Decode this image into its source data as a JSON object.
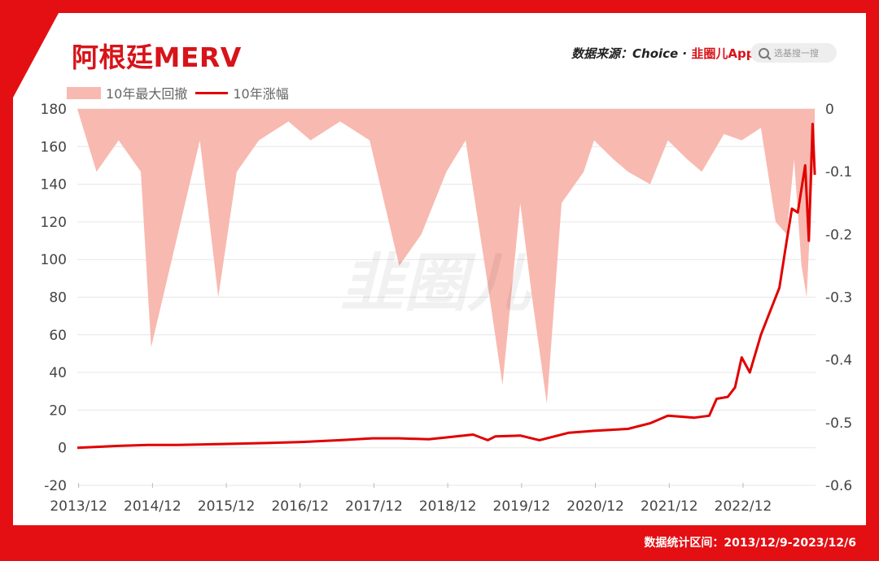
{
  "header": {
    "title": "阿根廷MERV",
    "source_prefix": "数据来源：Choice · ",
    "source_brand": "韭圈儿App",
    "search_placeholder": "选基搜一搜"
  },
  "footer": {
    "range_text": "数据统计区间：2013/12/9-2023/12/6"
  },
  "watermark": "韭圈儿",
  "colors": {
    "frame": "#e30f13",
    "line": "#e00000",
    "area": "#f8b9b0"
  },
  "chart_data": {
    "type": "line",
    "title": "",
    "legend": [
      "10年最大回撤",
      "10年涨幅"
    ],
    "legend_position": "top-left",
    "x_ticks": [
      "2013/12",
      "2014/12",
      "2015/12",
      "2016/12",
      "2017/12",
      "2018/12",
      "2019/12",
      "2020/12",
      "2021/12",
      "2022/12"
    ],
    "y_left": {
      "ticks": [
        "180",
        "160",
        "140",
        "120",
        "100",
        "80",
        "60",
        "40",
        "20",
        "0",
        "-20"
      ],
      "lim": [
        -20,
        180
      ]
    },
    "y_right": {
      "ticks": [
        "0",
        "-0.1",
        "-0.2",
        "-0.3",
        "-0.4",
        "-0.5",
        "-0.6"
      ],
      "lim": [
        -0.6,
        0
      ]
    },
    "grid": "horizontal",
    "series": [
      {
        "name": "10年涨幅",
        "type": "line",
        "axis": "left",
        "x": [
          2013.94,
          2014.5,
          2014.9,
          2015.3,
          2015.9,
          2016.5,
          2016.94,
          2017.5,
          2017.94,
          2018.3,
          2018.7,
          2018.94,
          2019.3,
          2019.5,
          2019.6,
          2019.94,
          2020.2,
          2020.6,
          2020.94,
          2021.4,
          2021.7,
          2021.94,
          2022.3,
          2022.5,
          2022.6,
          2022.75,
          2022.85,
          2022.94,
          2023.05,
          2023.2,
          2023.3,
          2023.45,
          2023.55,
          2023.62,
          2023.7,
          2023.8,
          2023.85,
          2023.9,
          2023.93
        ],
        "values": [
          0,
          1,
          1.5,
          1.5,
          2,
          2.5,
          3,
          4,
          5,
          5,
          4.5,
          5.5,
          7,
          4,
          6,
          6.5,
          4,
          8,
          9,
          10,
          13,
          17,
          16,
          17,
          26,
          27,
          32,
          48,
          40,
          60,
          70,
          85,
          110,
          127,
          125,
          150,
          110,
          172,
          145
        ]
      },
      {
        "name": "10年最大回撤",
        "type": "area",
        "axis": "right",
        "x": [
          2013.94,
          2014.2,
          2014.5,
          2014.8,
          2014.94,
          2015.3,
          2015.6,
          2015.85,
          2016.1,
          2016.4,
          2016.8,
          2017.1,
          2017.5,
          2017.9,
          2018.1,
          2018.3,
          2018.6,
          2018.94,
          2019.2,
          2019.5,
          2019.7,
          2019.94,
          2020.1,
          2020.3,
          2020.5,
          2020.8,
          2020.94,
          2021.2,
          2021.4,
          2021.7,
          2021.94,
          2022.2,
          2022.4,
          2022.7,
          2022.94,
          2023.2,
          2023.4,
          2023.55,
          2023.65,
          2023.75,
          2023.82,
          2023.88,
          2023.93
        ],
        "values": [
          0,
          -0.1,
          -0.05,
          -0.1,
          -0.38,
          -0.2,
          -0.05,
          -0.3,
          -0.1,
          -0.05,
          -0.02,
          -0.05,
          -0.02,
          -0.05,
          -0.15,
          -0.25,
          -0.2,
          -0.1,
          -0.05,
          -0.28,
          -0.44,
          -0.15,
          -0.3,
          -0.47,
          -0.15,
          -0.1,
          -0.05,
          -0.08,
          -0.1,
          -0.12,
          -0.05,
          -0.08,
          -0.1,
          -0.04,
          -0.05,
          -0.03,
          -0.18,
          -0.2,
          -0.08,
          -0.25,
          -0.3,
          -0.15,
          -0.04
        ]
      }
    ]
  }
}
